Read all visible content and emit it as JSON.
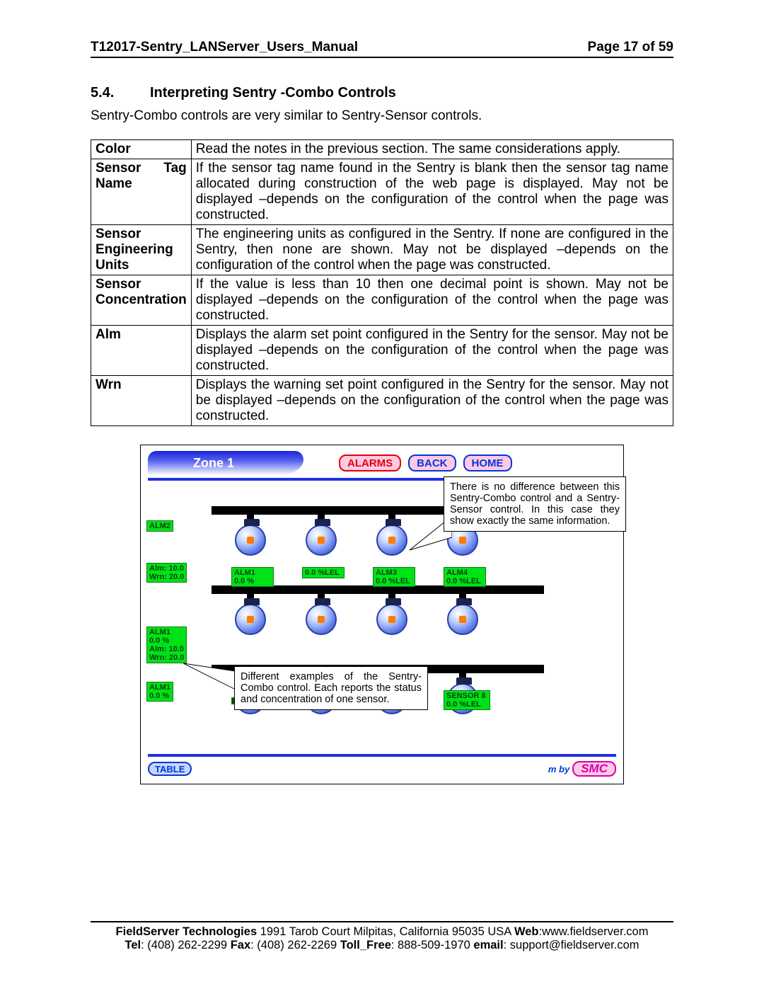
{
  "header": {
    "doc_title": "T12017-Sentry_LANServer_Users_Manual",
    "page_label": "Page 17 of 59"
  },
  "section": {
    "number": "5.4.",
    "title": "Interpreting Sentry -Combo Controls",
    "intro": "Sentry-Combo controls are very similar to Sentry-Sensor controls."
  },
  "table": {
    "rows": [
      {
        "label": "Color",
        "label_split": false,
        "text": "Read the notes in the previous section. The same considerations apply."
      },
      {
        "label": "Sensor Tag Name",
        "label_split": true,
        "split": [
          "Sensor",
          "Tag",
          "Name"
        ],
        "text": "If the sensor tag name found in the Sentry is blank then the sensor tag name allocated during construction of the web page is displayed. May not be displayed –depends on the configuration of the control when the page was constructed."
      },
      {
        "label": "Sensor Engineering Units",
        "label_split": false,
        "text": "The engineering units as configured in the Sentry. If none are configured in the Sentry, then none are shown. May not be displayed –depends on the configuration of the control when the page was constructed."
      },
      {
        "label": "Sensor Concentration",
        "label_split": false,
        "text": "If the value is less than 10 then one decimal point is shown. May not be displayed –depends on the configuration of the control when the page was constructed."
      },
      {
        "label": "Alm",
        "label_split": false,
        "text": "Displays the alarm set point configured in the Sentry for the sensor. May not be displayed –depends on the configuration of the control when the page was constructed."
      },
      {
        "label": "Wrn",
        "label_split": false,
        "text": "Displays the warning set point configured in the Sentry for the sensor. May not be displayed –depends on the configuration of the control when the page was constructed."
      }
    ]
  },
  "screenshot": {
    "zone_label": "Zone 1",
    "buttons": {
      "alarms": "ALARMS",
      "back": "BACK",
      "home": "HOME"
    },
    "callout_top": "There is no difference between this Sentry-Combo control and a Sentry-Sensor control. In this case they show exactly the same information.",
    "callout_bottom": "Different examples of the Sentry-Combo control.  Each reports the status and concentration of one sensor.",
    "side_tags": {
      "alm2": "ALM2",
      "alm_wrn": "Alm: 10.0\nWrn: 20.0",
      "alm1_full": "ALM1\n0.0 %\nAlm: 10.0\nWrn: 20.0",
      "alm1_short": "ALM1\n0.0 %"
    },
    "sensor_tags": {
      "r2c1": "ALM1\n0.0 %",
      "r2c2": "0.0 %LEL",
      "r2c3": "ALM3\n0.0 %LEL",
      "r2c4": "ALM4\n0.0 %LEL",
      "r3c4": "SENSOR 8\n0.0 %LEL"
    },
    "table_btn": "TABLE",
    "mby": "m by",
    "logo": "SMC",
    "colors": {
      "pill_grad_top": "#1a24d6",
      "green": "#00e218",
      "blue_rule": "#2030e0",
      "pink": "#ffc9e6"
    }
  },
  "footer": {
    "line1_company": "FieldServer Technologies",
    "line1_addr": " 1991 Tarob Court Milpitas, California 95035 USA  ",
    "line1_web_lbl": "Web",
    "line1_web": ":www.fieldserver.com",
    "line2_tel_lbl": "Tel",
    "line2_tel": ": (408) 262-2299   ",
    "line2_fax_lbl": "Fax",
    "line2_fax": ": (408) 262-2269   ",
    "line2_tf_lbl": "Toll_Free",
    "line2_tf": ": 888-509-1970   ",
    "line2_em_lbl": "email",
    "line2_em": ": support@fieldserver.com"
  }
}
